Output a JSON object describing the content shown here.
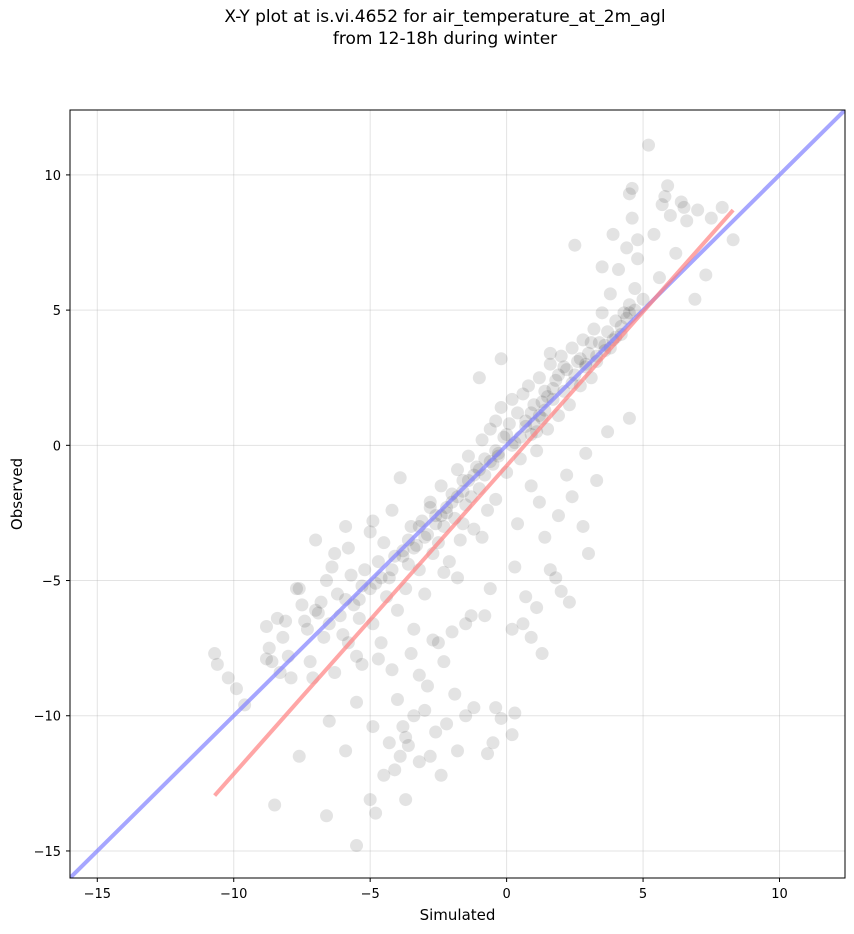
{
  "chart_data": {
    "type": "scatter",
    "title_line1": "X-Y plot at is.vi.4652 for air_temperature_at_2m_agl",
    "title_line2": "from 12-18h during winter",
    "xlabel": "Simulated",
    "ylabel": "Observed",
    "xlim": [
      -16.0,
      12.4
    ],
    "ylim": [
      -16.0,
      12.4
    ],
    "xticks": [
      -15,
      -10,
      -5,
      0,
      5,
      10
    ],
    "yticks": [
      -15,
      -10,
      -5,
      0,
      5,
      10
    ],
    "xtick_labels": [
      "−15",
      "−10",
      "−5",
      "0",
      "5",
      "10"
    ],
    "ytick_labels": [
      "−15",
      "−10",
      "−5",
      "0",
      "5",
      "10"
    ],
    "grid": true,
    "point_color": "#000000",
    "series": [
      {
        "name": "",
        "marker": "circle",
        "points": [
          [
            -10.7,
            -7.7
          ],
          [
            -10.6,
            -8.1
          ],
          [
            -10.2,
            -8.6
          ],
          [
            -9.9,
            -9.0
          ],
          [
            -9.6,
            -9.6
          ],
          [
            -8.8,
            -6.7
          ],
          [
            -8.7,
            -7.5
          ],
          [
            -8.6,
            -8.0
          ],
          [
            -8.4,
            -6.4
          ],
          [
            -8.3,
            -8.4
          ],
          [
            -8.2,
            -7.1
          ],
          [
            -8.1,
            -6.5
          ],
          [
            -7.9,
            -8.6
          ],
          [
            -7.7,
            -5.3
          ],
          [
            -7.5,
            -5.9
          ],
          [
            -7.4,
            -6.5
          ],
          [
            -7.3,
            -6.8
          ],
          [
            -7.2,
            -8.0
          ],
          [
            -7.0,
            -3.5
          ],
          [
            -6.9,
            -6.2
          ],
          [
            -6.8,
            -5.8
          ],
          [
            -6.7,
            -7.1
          ],
          [
            -6.6,
            -5.0
          ],
          [
            -6.5,
            -6.6
          ],
          [
            -6.4,
            -4.5
          ],
          [
            -6.3,
            -4.0
          ],
          [
            -6.2,
            -5.5
          ],
          [
            -6.1,
            -6.3
          ],
          [
            -6.0,
            -7.0
          ],
          [
            -5.9,
            -5.7
          ],
          [
            -5.8,
            -3.8
          ],
          [
            -5.7,
            -4.8
          ],
          [
            -5.6,
            -5.9
          ],
          [
            -5.5,
            -7.8
          ],
          [
            -5.4,
            -6.4
          ],
          [
            -5.3,
            -5.2
          ],
          [
            -5.2,
            -4.6
          ],
          [
            -5.0,
            -3.2
          ],
          [
            -4.9,
            -6.6
          ],
          [
            -4.8,
            -5.1
          ],
          [
            -4.7,
            -4.3
          ],
          [
            -4.6,
            -7.3
          ],
          [
            -4.5,
            -3.6
          ],
          [
            -4.4,
            -5.6
          ],
          [
            -4.3,
            -4.9
          ],
          [
            -4.2,
            -2.4
          ],
          [
            -4.1,
            -4.1
          ],
          [
            -4.0,
            -6.1
          ],
          [
            -3.9,
            -1.2
          ],
          [
            -3.8,
            -3.9
          ],
          [
            -3.7,
            -5.3
          ],
          [
            -3.6,
            -4.4
          ],
          [
            -3.5,
            -3.0
          ],
          [
            -3.4,
            -6.8
          ],
          [
            -3.3,
            -3.7
          ],
          [
            -3.2,
            -4.6
          ],
          [
            -3.1,
            -2.8
          ],
          [
            -3.0,
            -5.5
          ],
          [
            -2.9,
            -3.3
          ],
          [
            -2.8,
            -2.1
          ],
          [
            -2.7,
            -4.0
          ],
          [
            -2.6,
            -2.6
          ],
          [
            -2.5,
            -3.6
          ],
          [
            -2.4,
            -1.5
          ],
          [
            -2.3,
            -3.0
          ],
          [
            -2.2,
            -2.3
          ],
          [
            -2.1,
            -4.3
          ],
          [
            -2.0,
            -1.8
          ],
          [
            -1.9,
            -2.7
          ],
          [
            -1.8,
            -0.9
          ],
          [
            -1.7,
            -3.5
          ],
          [
            -1.6,
            -1.3
          ],
          [
            -1.5,
            -2.2
          ],
          [
            -1.4,
            -0.4
          ],
          [
            -1.3,
            -1.9
          ],
          [
            -1.2,
            -3.1
          ],
          [
            -1.1,
            -0.8
          ],
          [
            -1.0,
            -1.6
          ],
          [
            -0.9,
            0.2
          ],
          [
            -0.8,
            -1.1
          ],
          [
            -0.7,
            -2.4
          ],
          [
            -0.6,
            0.6
          ],
          [
            -0.5,
            -0.7
          ],
          [
            -0.4,
            0.9
          ],
          [
            -0.3,
            -0.3
          ],
          [
            -0.2,
            1.4
          ],
          [
            -0.1,
            0.3
          ],
          [
            0.0,
            -1.0
          ],
          [
            0.1,
            0.8
          ],
          [
            0.2,
            1.7
          ],
          [
            0.3,
            0.1
          ],
          [
            0.4,
            1.2
          ],
          [
            0.5,
            -0.5
          ],
          [
            0.6,
            1.9
          ],
          [
            0.7,
            0.7
          ],
          [
            0.8,
            2.2
          ],
          [
            0.9,
            0.4
          ],
          [
            1.0,
            1.5
          ],
          [
            1.1,
            -0.2
          ],
          [
            1.2,
            2.5
          ],
          [
            1.3,
            1.0
          ],
          [
            1.4,
            2.0
          ],
          [
            1.5,
            0.6
          ],
          [
            1.6,
            3.0
          ],
          [
            1.7,
            1.7
          ],
          [
            1.8,
            2.4
          ],
          [
            1.9,
            1.1
          ],
          [
            2.0,
            3.3
          ],
          [
            2.1,
            2.0
          ],
          [
            2.2,
            2.8
          ],
          [
            2.3,
            1.5
          ],
          [
            2.4,
            3.6
          ],
          [
            2.5,
            2.6
          ],
          [
            2.6,
            3.1
          ],
          [
            2.7,
            2.2
          ],
          [
            2.8,
            3.9
          ],
          [
            2.9,
            2.9
          ],
          [
            3.0,
            3.4
          ],
          [
            3.1,
            2.5
          ],
          [
            3.2,
            4.3
          ],
          [
            3.3,
            3.1
          ],
          [
            3.4,
            3.8
          ],
          [
            3.5,
            4.9
          ],
          [
            3.6,
            3.5
          ],
          [
            3.7,
            4.2
          ],
          [
            3.8,
            5.6
          ],
          [
            3.9,
            3.9
          ],
          [
            4.0,
            4.6
          ],
          [
            4.1,
            6.5
          ],
          [
            4.2,
            4.1
          ],
          [
            4.3,
            4.9
          ],
          [
            4.4,
            7.3
          ],
          [
            4.5,
            5.2
          ],
          [
            4.6,
            8.4
          ],
          [
            4.7,
            5.8
          ],
          [
            4.8,
            6.9
          ],
          [
            5.0,
            5.4
          ],
          [
            5.2,
            11.1
          ],
          [
            5.4,
            7.8
          ],
          [
            5.6,
            6.2
          ],
          [
            5.8,
            9.2
          ],
          [
            6.0,
            8.5
          ],
          [
            6.2,
            7.1
          ],
          [
            6.5,
            8.8
          ],
          [
            6.9,
            5.4
          ],
          [
            7.0,
            8.7
          ],
          [
            7.3,
            6.3
          ],
          [
            7.5,
            8.4
          ],
          [
            7.9,
            8.8
          ],
          [
            8.3,
            7.6
          ],
          [
            4.5,
            9.3
          ],
          [
            4.6,
            9.5
          ],
          [
            5.9,
            9.6
          ],
          [
            6.4,
            9.0
          ],
          [
            3.9,
            7.8
          ],
          [
            2.5,
            7.4
          ],
          [
            3.5,
            6.6
          ],
          [
            5.7,
            8.9
          ],
          [
            6.6,
            8.3
          ],
          [
            4.8,
            7.6
          ],
          [
            1.6,
            3.4
          ],
          [
            1.2,
            1.1
          ],
          [
            1.5,
            1.8
          ],
          [
            2.1,
            2.9
          ],
          [
            2.4,
            2.3
          ],
          [
            1.0,
            0.8
          ],
          [
            1.9,
            2.6
          ],
          [
            2.7,
            3.2
          ],
          [
            3.1,
            3.8
          ],
          [
            3.6,
            3.7
          ],
          [
            4.0,
            4.0
          ],
          [
            4.2,
            4.4
          ],
          [
            4.4,
            4.7
          ],
          [
            3.8,
            3.6
          ],
          [
            4.5,
            4.9
          ],
          [
            4.7,
            5.0
          ],
          [
            3.3,
            3.3
          ],
          [
            2.9,
            3.0
          ],
          [
            1.4,
            1.3
          ],
          [
            1.7,
            2.1
          ],
          [
            0.7,
            0.9
          ],
          [
            0.9,
            1.2
          ],
          [
            1.1,
            0.5
          ],
          [
            1.3,
            1.6
          ],
          [
            0.5,
            0.3
          ],
          [
            0.2,
            0.0
          ],
          [
            -0.3,
            -0.4
          ],
          [
            -0.6,
            -0.6
          ],
          [
            -1.0,
            -0.9
          ],
          [
            -1.4,
            -1.3
          ],
          [
            -1.8,
            -1.9
          ],
          [
            -2.2,
            -2.5
          ],
          [
            -2.6,
            -2.9
          ],
          [
            -3.0,
            -3.4
          ],
          [
            -3.4,
            -3.8
          ],
          [
            -3.8,
            -4.1
          ],
          [
            -4.2,
            -4.6
          ],
          [
            -4.6,
            -4.9
          ],
          [
            -5.0,
            -5.3
          ],
          [
            -5.4,
            -5.7
          ],
          [
            -2.4,
            -2.6
          ],
          [
            -2.8,
            -2.3
          ],
          [
            -3.2,
            -3.0
          ],
          [
            -3.6,
            -3.5
          ],
          [
            -2.0,
            -2.1
          ],
          [
            -1.6,
            -1.7
          ],
          [
            -1.2,
            -1.1
          ],
          [
            -0.8,
            -0.5
          ],
          [
            -0.4,
            -0.2
          ],
          [
            0.0,
            0.4
          ],
          [
            -4.0,
            -9.4
          ],
          [
            -3.8,
            -10.4
          ],
          [
            -3.6,
            -11.1
          ],
          [
            -3.4,
            -10.0
          ],
          [
            -3.2,
            -11.7
          ],
          [
            -3.0,
            -9.8
          ],
          [
            -2.8,
            -11.5
          ],
          [
            -2.6,
            -10.6
          ],
          [
            -2.4,
            -12.2
          ],
          [
            -2.2,
            -10.3
          ],
          [
            -4.5,
            -12.2
          ],
          [
            -4.3,
            -11.0
          ],
          [
            -4.1,
            -12.0
          ],
          [
            -3.9,
            -11.5
          ],
          [
            -3.7,
            -10.8
          ],
          [
            -5.0,
            -13.1
          ],
          [
            -4.8,
            -13.6
          ],
          [
            -3.7,
            -13.1
          ],
          [
            -5.5,
            -9.5
          ],
          [
            -4.9,
            -10.4
          ],
          [
            -1.8,
            -11.3
          ],
          [
            -1.5,
            -10.0
          ],
          [
            -1.2,
            -9.7
          ],
          [
            -0.7,
            -11.4
          ],
          [
            -0.4,
            -9.7
          ],
          [
            -0.2,
            -10.1
          ],
          [
            0.2,
            -10.7
          ],
          [
            0.3,
            -9.9
          ],
          [
            -0.5,
            -11.0
          ],
          [
            -1.9,
            -9.2
          ],
          [
            -6.6,
            -13.7
          ],
          [
            -5.5,
            -14.8
          ],
          [
            -8.5,
            -13.3
          ],
          [
            -7.6,
            -11.5
          ],
          [
            -6.5,
            -10.2
          ],
          [
            -5.9,
            -11.3
          ],
          [
            0.7,
            -5.6
          ],
          [
            1.1,
            -6.0
          ],
          [
            0.9,
            -7.1
          ],
          [
            1.3,
            -7.7
          ],
          [
            0.2,
            -6.8
          ],
          [
            0.6,
            -6.6
          ],
          [
            -0.8,
            -6.3
          ],
          [
            -1.5,
            -6.6
          ],
          [
            -2.0,
            -6.9
          ],
          [
            -2.5,
            -7.3
          ],
          [
            1.8,
            -4.9
          ],
          [
            2.3,
            -5.8
          ],
          [
            1.6,
            -4.6
          ],
          [
            2.0,
            -5.4
          ],
          [
            3.0,
            -4.0
          ],
          [
            2.8,
            -3.0
          ],
          [
            2.4,
            -1.9
          ],
          [
            1.9,
            -2.6
          ],
          [
            3.3,
            -1.3
          ],
          [
            4.5,
            1.0
          ],
          [
            3.7,
            0.5
          ],
          [
            2.9,
            -0.3
          ],
          [
            -1.0,
            2.5
          ],
          [
            -0.2,
            3.2
          ],
          [
            -7.0,
            -6.1
          ],
          [
            -7.6,
            -5.3
          ],
          [
            -8.0,
            -7.8
          ],
          [
            -8.8,
            -7.9
          ],
          [
            -7.1,
            -8.6
          ],
          [
            -6.3,
            -8.4
          ],
          [
            -5.8,
            -7.3
          ],
          [
            -5.3,
            -8.1
          ],
          [
            -4.7,
            -7.9
          ],
          [
            -4.2,
            -8.3
          ],
          [
            -3.2,
            -8.5
          ],
          [
            -2.9,
            -8.9
          ],
          [
            -2.3,
            -8.0
          ],
          [
            -3.5,
            -7.7
          ],
          [
            -2.7,
            -7.2
          ],
          [
            -1.3,
            -6.3
          ],
          [
            -0.6,
            -5.3
          ],
          [
            0.3,
            -4.5
          ],
          [
            -1.8,
            -4.9
          ],
          [
            -0.9,
            -3.4
          ],
          [
            0.4,
            -2.9
          ],
          [
            1.4,
            -3.4
          ],
          [
            1.2,
            -2.1
          ],
          [
            2.2,
            -1.1
          ],
          [
            -0.4,
            -2.0
          ],
          [
            0.9,
            -1.5
          ],
          [
            -1.6,
            -2.9
          ],
          [
            -2.3,
            -4.7
          ],
          [
            -4.9,
            -2.8
          ],
          [
            -5.9,
            -3.0
          ]
        ]
      },
      {
        "name": "",
        "type": "line",
        "color": "#8080ff",
        "points": [
          [
            -16.0,
            -16.0
          ],
          [
            12.4,
            12.4
          ]
        ]
      },
      {
        "name": "",
        "type": "line",
        "color": "#ff8080",
        "points": [
          [
            -10.7,
            -12.95
          ],
          [
            8.3,
            8.7
          ]
        ]
      }
    ]
  }
}
